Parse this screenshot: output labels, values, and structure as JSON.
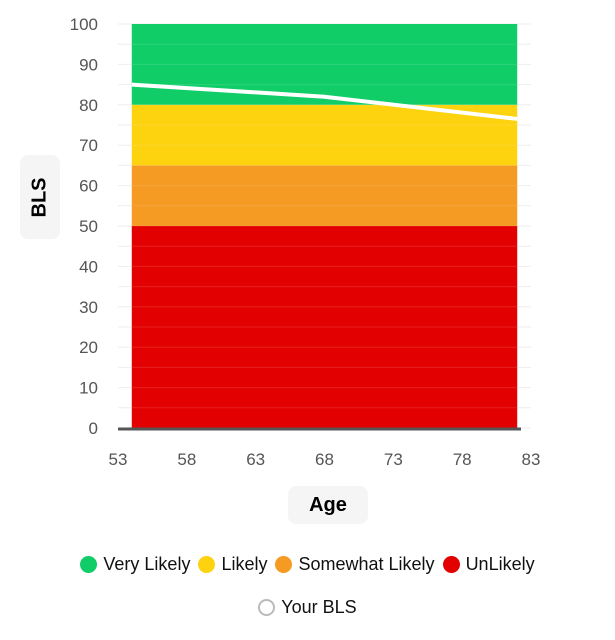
{
  "chart_data": {
    "type": "area",
    "xlabel": "Age",
    "ylabel": "BLS",
    "xlim": [
      53,
      83
    ],
    "ylim": [
      0,
      100
    ],
    "xticks": [
      53,
      58,
      63,
      68,
      73,
      78,
      83
    ],
    "yticks": [
      0,
      10,
      20,
      30,
      40,
      50,
      60,
      70,
      80,
      90,
      100
    ],
    "grid": true,
    "legend_position": "bottom",
    "x_range": [
      54,
      82
    ],
    "bands": [
      {
        "name": "UnLikely",
        "from": 0,
        "to": 50,
        "color": "#e30000"
      },
      {
        "name": "Somewhat Likely",
        "from": 50,
        "to": 65,
        "color": "#f59a23"
      },
      {
        "name": "Likely",
        "from": 65,
        "to": 80,
        "color": "#fdd20f"
      },
      {
        "name": "Very Likely",
        "from": 80,
        "to": 100,
        "color": "#10cd68"
      }
    ],
    "series": [
      {
        "name": "Your BLS",
        "color": "#ffffff",
        "x": [
          54,
          68,
          82
        ],
        "y": [
          85,
          82,
          76.5
        ]
      }
    ],
    "legend": [
      {
        "label": "Very Likely",
        "color": "#10cd68"
      },
      {
        "label": "Likely",
        "color": "#fdd20f"
      },
      {
        "label": "Somewhat Likely",
        "color": "#f59a23"
      },
      {
        "label": "UnLikely",
        "color": "#e30000"
      }
    ],
    "legend_line": {
      "label": "Your BLS"
    }
  }
}
